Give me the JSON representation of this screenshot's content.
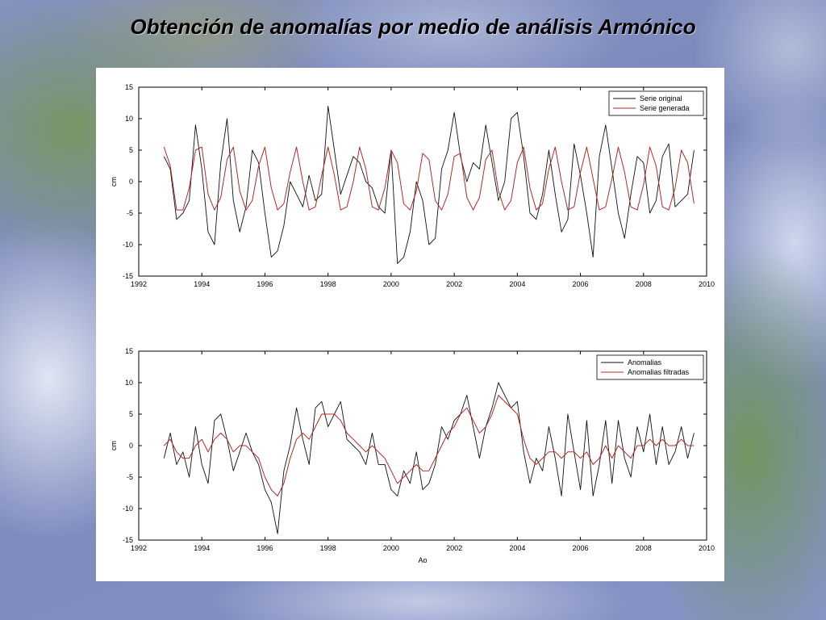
{
  "slide": {
    "title": "Obtención de anomalías por medio de análisis Armónico"
  },
  "colors": {
    "series_black": "#111111",
    "series_red": "#b52a25",
    "axes": "#000000",
    "panel_bg": "#ffffff"
  },
  "chart_data": [
    {
      "type": "line",
      "title": "",
      "xlabel": "",
      "ylabel": "cm",
      "xlim": [
        1992,
        2010
      ],
      "ylim": [
        -15,
        15
      ],
      "xticks": [
        1992,
        1994,
        1996,
        1998,
        2000,
        2002,
        2004,
        2006,
        2008,
        2010
      ],
      "yticks": [
        15,
        10,
        5,
        0,
        -5,
        -10,
        -15
      ],
      "legend_position": "top-right",
      "grid": false,
      "series": [
        {
          "name": "Serie original",
          "color": "#111111",
          "x": [
            1992.8,
            1993.0,
            1993.2,
            1993.4,
            1993.6,
            1993.8,
            1994.0,
            1994.2,
            1994.4,
            1994.6,
            1994.8,
            1995.0,
            1995.2,
            1995.4,
            1995.6,
            1995.8,
            1996.0,
            1996.2,
            1996.4,
            1996.6,
            1996.8,
            1997.0,
            1997.2,
            1997.4,
            1997.6,
            1997.8,
            1998.0,
            1998.2,
            1998.4,
            1998.6,
            1998.8,
            1999.0,
            1999.2,
            1999.4,
            1999.6,
            1999.8,
            2000.0,
            2000.2,
            2000.4,
            2000.6,
            2000.8,
            2001.0,
            2001.2,
            2001.4,
            2001.6,
            2001.8,
            2002.0,
            2002.2,
            2002.4,
            2002.6,
            2002.8,
            2003.0,
            2003.2,
            2003.4,
            2003.6,
            2003.8,
            2004.0,
            2004.2,
            2004.4,
            2004.6,
            2004.8,
            2005.0,
            2005.2,
            2005.4,
            2005.6,
            2005.8,
            2006.0,
            2006.2,
            2006.4,
            2006.6,
            2006.8,
            2007.0,
            2007.2,
            2007.4,
            2007.6,
            2007.8,
            2008.0,
            2008.2,
            2008.4,
            2008.6,
            2008.8,
            2009.0,
            2009.2,
            2009.4,
            2009.6
          ],
          "values": [
            4,
            2,
            -6,
            -5,
            -3,
            9,
            2,
            -8,
            -10,
            3,
            10,
            -3,
            -8,
            -4,
            5,
            3,
            -5,
            -12,
            -11,
            -7,
            0,
            -2,
            -4,
            1,
            -3,
            -2,
            12,
            5,
            -2,
            1,
            4,
            3,
            0,
            -1,
            -4,
            -5,
            5,
            -13,
            -12,
            -8,
            0,
            -3,
            -10,
            -9,
            2,
            5,
            11,
            4,
            0,
            3,
            2,
            9,
            3,
            -3,
            0,
            10,
            11,
            4,
            -5,
            -6,
            -2,
            5,
            -2,
            -8,
            -6,
            6,
            1,
            -5,
            -12,
            4,
            9,
            2,
            -5,
            -9,
            -2,
            4,
            3,
            -5,
            -3,
            4,
            6,
            -4,
            -3,
            -2,
            5
          ]
        },
        {
          "name": "Serie generada",
          "color": "#b52a25",
          "x": [
            1992.8,
            1993.0,
            1993.2,
            1993.4,
            1993.6,
            1993.8,
            1994.0,
            1994.2,
            1994.4,
            1994.6,
            1994.8,
            1995.0,
            1995.2,
            1995.4,
            1995.6,
            1995.8,
            1996.0,
            1996.2,
            1996.4,
            1996.6,
            1996.8,
            1997.0,
            1997.2,
            1997.4,
            1997.6,
            1997.8,
            1998.0,
            1998.2,
            1998.4,
            1998.6,
            1998.8,
            1999.0,
            1999.2,
            1999.4,
            1999.6,
            1999.8,
            2000.0,
            2000.2,
            2000.4,
            2000.6,
            2000.8,
            2001.0,
            2001.2,
            2001.4,
            2001.6,
            2001.8,
            2002.0,
            2002.2,
            2002.4,
            2002.6,
            2002.8,
            2003.0,
            2003.2,
            2003.4,
            2003.6,
            2003.8,
            2004.0,
            2004.2,
            2004.4,
            2004.6,
            2004.8,
            2005.0,
            2005.2,
            2005.4,
            2005.6,
            2005.8,
            2006.0,
            2006.2,
            2006.4,
            2006.6,
            2006.8,
            2007.0,
            2007.2,
            2007.4,
            2007.6,
            2007.8,
            2008.0,
            2008.2,
            2008.4,
            2008.6,
            2008.8,
            2009.0,
            2009.2,
            2009.4,
            2009.6
          ],
          "values": [
            5.5,
            2.5,
            -4.5,
            -4.5,
            -1,
            5,
            5.5,
            -2,
            -4.5,
            -2.5,
            3.5,
            5.5,
            -1.5,
            -4.5,
            -3,
            2.5,
            5.5,
            -1,
            -4.5,
            -3.5,
            1.5,
            5.5,
            0,
            -4.5,
            -4,
            1,
            5.5,
            1,
            -4.5,
            -4,
            0,
            5.5,
            2,
            -4,
            -4.5,
            -1,
            5,
            3,
            -3.5,
            -4.5,
            -1.5,
            4.5,
            3.5,
            -3,
            -4.5,
            -2,
            4,
            4.5,
            -2.5,
            -4.5,
            -2.5,
            3.5,
            5,
            -1.5,
            -4.5,
            -3,
            3,
            5.5,
            -1,
            -4.5,
            -3.5,
            2,
            5.5,
            0,
            -4.5,
            -4,
            1.5,
            5.5,
            0.5,
            -4.5,
            -4,
            0.5,
            5.5,
            1.5,
            -4,
            -4.5,
            -0.5,
            5.5,
            2.5,
            -4,
            -4.5,
            -1,
            5,
            3,
            -3.5
          ]
        }
      ]
    },
    {
      "type": "line",
      "title": "",
      "xlabel": "Ao",
      "ylabel": "cm",
      "xlim": [
        1992,
        2010
      ],
      "ylim": [
        -15,
        15
      ],
      "xticks": [
        1992,
        1994,
        1996,
        1998,
        2000,
        2002,
        2004,
        2006,
        2008,
        2010
      ],
      "yticks": [
        15,
        10,
        5,
        0,
        -5,
        -10,
        -15
      ],
      "legend_position": "top-right",
      "grid": false,
      "series": [
        {
          "name": "Anomalias",
          "color": "#111111",
          "x": [
            1992.8,
            1993.0,
            1993.2,
            1993.4,
            1993.6,
            1993.8,
            1994.0,
            1994.2,
            1994.4,
            1994.6,
            1994.8,
            1995.0,
            1995.2,
            1995.4,
            1995.6,
            1995.8,
            1996.0,
            1996.2,
            1996.4,
            1996.6,
            1996.8,
            1997.0,
            1997.2,
            1997.4,
            1997.6,
            1997.8,
            1998.0,
            1998.2,
            1998.4,
            1998.6,
            1998.8,
            1999.0,
            1999.2,
            1999.4,
            1999.6,
            1999.8,
            2000.0,
            2000.2,
            2000.4,
            2000.6,
            2000.8,
            2001.0,
            2001.2,
            2001.4,
            2001.6,
            2001.8,
            2002.0,
            2002.2,
            2002.4,
            2002.6,
            2002.8,
            2003.0,
            2003.2,
            2003.4,
            2003.6,
            2003.8,
            2004.0,
            2004.2,
            2004.4,
            2004.6,
            2004.8,
            2005.0,
            2005.2,
            2005.4,
            2005.6,
            2005.8,
            2006.0,
            2006.2,
            2006.4,
            2006.6,
            2006.8,
            2007.0,
            2007.2,
            2007.4,
            2007.6,
            2007.8,
            2008.0,
            2008.2,
            2008.4,
            2008.6,
            2008.8,
            2009.0,
            2009.2,
            2009.4,
            2009.6
          ],
          "values": [
            -2,
            2,
            -3,
            -1,
            -5,
            3,
            -3,
            -6,
            4,
            5,
            1,
            -4,
            -1,
            2,
            -1,
            -3,
            -7,
            -9,
            -14,
            -4,
            0,
            6,
            1,
            -3,
            6,
            7,
            3,
            5,
            7,
            1,
            0,
            -1,
            -3,
            2,
            -3,
            -3,
            -7,
            -8,
            -4,
            -6,
            -1,
            -7,
            -6,
            -3,
            3,
            1,
            4,
            5,
            8,
            3,
            -2,
            3,
            6,
            10,
            8,
            6,
            7,
            -1,
            -6,
            -2,
            -4,
            3,
            -2,
            -8,
            5,
            -1,
            -7,
            4,
            -8,
            -3,
            4,
            -6,
            4,
            -2,
            -5,
            3,
            -1,
            5,
            -3,
            3,
            -3,
            -1,
            3,
            -2,
            2
          ]
        },
        {
          "name": "Anomalias filtradas",
          "color": "#b52a25",
          "x": [
            1992.8,
            1993.0,
            1993.2,
            1993.4,
            1993.6,
            1993.8,
            1994.0,
            1994.2,
            1994.4,
            1994.6,
            1994.8,
            1995.0,
            1995.2,
            1995.4,
            1995.6,
            1995.8,
            1996.0,
            1996.2,
            1996.4,
            1996.6,
            1996.8,
            1997.0,
            1997.2,
            1997.4,
            1997.6,
            1997.8,
            1998.0,
            1998.2,
            1998.4,
            1998.6,
            1998.8,
            1999.0,
            1999.2,
            1999.4,
            1999.6,
            1999.8,
            2000.0,
            2000.2,
            2000.4,
            2000.6,
            2000.8,
            2001.0,
            2001.2,
            2001.4,
            2001.6,
            2001.8,
            2002.0,
            2002.2,
            2002.4,
            2002.6,
            2002.8,
            2003.0,
            2003.2,
            2003.4,
            2003.6,
            2003.8,
            2004.0,
            2004.2,
            2004.4,
            2004.6,
            2004.8,
            2005.0,
            2005.2,
            2005.4,
            2005.6,
            2005.8,
            2006.0,
            2006.2,
            2006.4,
            2006.6,
            2006.8,
            2007.0,
            2007.2,
            2007.4,
            2007.6,
            2007.8,
            2008.0,
            2008.2,
            2008.4,
            2008.6,
            2008.8,
            2009.0,
            2009.2,
            2009.4,
            2009.6
          ],
          "values": [
            0,
            1,
            -1,
            -2,
            -2,
            0,
            1,
            -1,
            1,
            2,
            1,
            -1,
            0,
            0,
            -1,
            -2,
            -5,
            -7,
            -8,
            -6,
            -2,
            1,
            2,
            1,
            3,
            5,
            5,
            5,
            4,
            2,
            1,
            0,
            -1,
            0,
            -1,
            -2,
            -4,
            -6,
            -5,
            -4,
            -3,
            -4,
            -4,
            -2,
            0,
            2,
            3,
            5,
            6,
            4,
            2,
            3,
            5,
            8,
            7,
            6,
            5,
            1,
            -2,
            -3,
            -2,
            -1,
            -1,
            -2,
            -1,
            -1,
            -2,
            -1,
            -3,
            -2,
            0,
            -2,
            0,
            -1,
            -2,
            0,
            0,
            1,
            0,
            1,
            0,
            0,
            1,
            0,
            0
          ]
        }
      ]
    }
  ]
}
